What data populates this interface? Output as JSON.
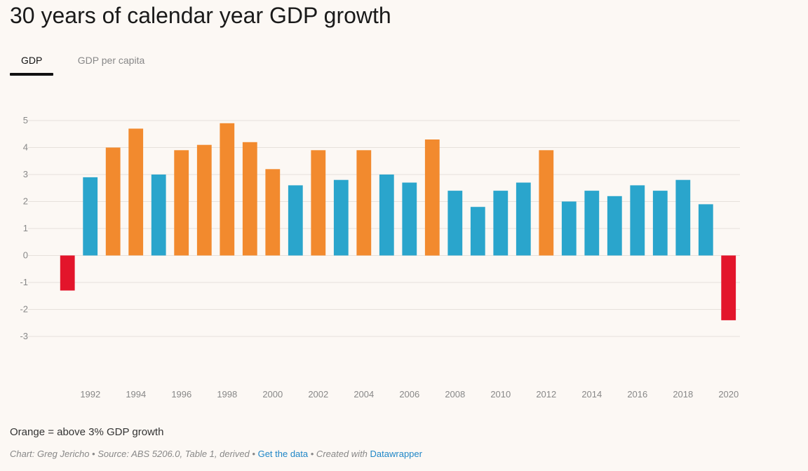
{
  "title": "30 years of calendar year GDP growth",
  "tabs": [
    {
      "label": "GDP",
      "active": true
    },
    {
      "label": "GDP per capita",
      "active": false
    }
  ],
  "chart_data": {
    "type": "bar",
    "title": "30 years of calendar year GDP growth",
    "xlabel": "",
    "ylabel": "",
    "ylim": [
      -3,
      5
    ],
    "y_ticks": [
      5,
      4,
      3,
      2,
      1,
      0,
      -1,
      -2,
      -3
    ],
    "x_tick_labels": [
      "1992",
      "1994",
      "1996",
      "1998",
      "2000",
      "2002",
      "2004",
      "2006",
      "2008",
      "2010",
      "2012",
      "2014",
      "2016",
      "2018",
      "2020"
    ],
    "categories": [
      "1991",
      "1992",
      "1993",
      "1994",
      "1995",
      "1996",
      "1997",
      "1998",
      "1999",
      "2000",
      "2001",
      "2002",
      "2003",
      "2004",
      "2005",
      "2006",
      "2007",
      "2008",
      "2009",
      "2010",
      "2011",
      "2012",
      "2013",
      "2014",
      "2015",
      "2016",
      "2017",
      "2018",
      "2019",
      "2020"
    ],
    "values": [
      -1.3,
      2.9,
      4.0,
      4.7,
      3.0,
      3.9,
      4.1,
      4.9,
      4.2,
      3.2,
      2.6,
      3.9,
      2.8,
      3.9,
      3.0,
      2.7,
      4.3,
      2.4,
      1.8,
      2.4,
      2.7,
      3.9,
      2.0,
      2.4,
      2.2,
      2.6,
      2.4,
      2.8,
      1.9,
      -2.4
    ],
    "grid": true,
    "legend": "none",
    "colors": {
      "above_3pct": "#f28a2e",
      "normal": "#2aa5cc",
      "negative": "#e3152b",
      "grid": "#e6e1dc"
    }
  },
  "footnote": "Orange = above 3% GDP growth",
  "credits": {
    "prefix": "Chart: Greg Jericho • Source: ABS 5206.0, Table 1, derived •",
    "data_link": "Get the data",
    "middle": "• Created with",
    "tool_link": "Datawrapper"
  }
}
